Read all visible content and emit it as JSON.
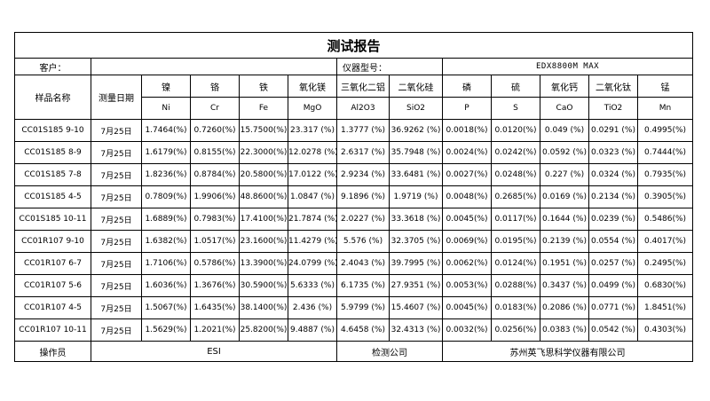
{
  "report": {
    "title": "测试报告",
    "customer_label": "客户：",
    "customer_value": "",
    "instrument_label": "仪器型号：",
    "instrument_value": "EDX8800M MAX",
    "sample_name_header": "样品名称",
    "date_header": "测量日期",
    "elements": [
      {
        "name": "镍",
        "symbol": "Ni"
      },
      {
        "name": "铬",
        "symbol": "Cr"
      },
      {
        "name": "铁",
        "symbol": "Fe"
      },
      {
        "name": "氧化镁",
        "symbol": "MgO"
      },
      {
        "name": "三氧化二铝",
        "symbol": "Al2O3"
      },
      {
        "name": "二氧化硅",
        "symbol": "SiO2"
      },
      {
        "name": "磷",
        "symbol": "P"
      },
      {
        "name": "硫",
        "symbol": "S"
      },
      {
        "name": "氧化钙",
        "symbol": "CaO"
      },
      {
        "name": "二氧化钛",
        "symbol": "TiO2"
      },
      {
        "name": "锰",
        "symbol": "Mn"
      }
    ],
    "rows": [
      {
        "sample": "CC01S185 9-10",
        "date": "7月25日",
        "values": [
          "1.7464(%)",
          "0.7260(%)",
          "15.7500(%)",
          "23.317 (%)",
          "1.3777 (%)",
          "36.9262 (%)",
          "0.0018(%)",
          "0.0120(%)",
          "0.049 (%)",
          "0.0291 (%)",
          "0.4995(%)"
        ]
      },
      {
        "sample": "CC01S185 8-9",
        "date": "7月25日",
        "values": [
          "1.6179(%)",
          "0.8155(%)",
          "22.3000(%)",
          "12.0278 (%)",
          "2.6317 (%)",
          "35.7948 (%)",
          "0.0024(%)",
          "0.0242(%)",
          "0.0592 (%)",
          "0.0323 (%)",
          "0.7444(%)"
        ]
      },
      {
        "sample": "CC01S185 7-8",
        "date": "7月25日",
        "values": [
          "1.8236(%)",
          "0.8784(%)",
          "20.5800(%)",
          "17.0122 (%)",
          "2.9234 (%)",
          "33.6481 (%)",
          "0.0027(%)",
          "0.0248(%)",
          "0.227 (%)",
          "0.0324 (%)",
          "0.7935(%)"
        ]
      },
      {
        "sample": "CC01S185 4-5",
        "date": "7月25日",
        "values": [
          "0.7809(%)",
          "1.9906(%)",
          "48.8600(%)",
          "1.0847 (%)",
          "9.1896 (%)",
          "1.9719 (%)",
          "0.0048(%)",
          "0.2685(%)",
          "0.0169 (%)",
          "0.2134 (%)",
          "0.3905(%)"
        ]
      },
      {
        "sample": "CC01S185 10-11",
        "date": "7月25日",
        "values": [
          "1.6889(%)",
          "0.7983(%)",
          "17.4100(%)",
          "21.7874 (%)",
          "2.0227 (%)",
          "33.3618 (%)",
          "0.0045(%)",
          "0.0117(%)",
          "0.1644 (%)",
          "0.0239 (%)",
          "0.5486(%)"
        ]
      },
      {
        "sample": "CC01R107 9-10",
        "date": "7月25日",
        "values": [
          "1.6382(%)",
          "1.0517(%)",
          "23.1600(%)",
          "11.4279 (%)",
          "5.576 (%)",
          "32.3705 (%)",
          "0.0069(%)",
          "0.0195(%)",
          "0.2139 (%)",
          "0.0554 (%)",
          "0.4017(%)"
        ]
      },
      {
        "sample": "CC01R107 6-7",
        "date": "7月25日",
        "values": [
          "1.7106(%)",
          "0.5786(%)",
          "13.3900(%)",
          "24.0799 (%)",
          "2.4043 (%)",
          "39.7995 (%)",
          "0.0062(%)",
          "0.0124(%)",
          "0.1951 (%)",
          "0.0257 (%)",
          "0.2495(%)"
        ]
      },
      {
        "sample": "CC01R107 5-6",
        "date": "7月25日",
        "values": [
          "1.6036(%)",
          "1.3676(%)",
          "30.5900(%)",
          "5.6333 (%)",
          "6.1735 (%)",
          "27.9351 (%)",
          "0.0053(%)",
          "0.0288(%)",
          "0.3437 (%)",
          "0.0499 (%)",
          "0.6830(%)"
        ]
      },
      {
        "sample": "CC01R107 4-5",
        "date": "7月25日",
        "values": [
          "1.5067(%)",
          "1.6435(%)",
          "38.1400(%)",
          "2.436 (%)",
          "5.9799 (%)",
          "15.4607 (%)",
          "0.0045(%)",
          "0.0183(%)",
          "0.2086 (%)",
          "0.0771 (%)",
          "1.8451(%)"
        ]
      },
      {
        "sample": "CC01R107 10-11",
        "date": "7月25日",
        "values": [
          "1.5629(%)",
          "1.2021(%)",
          "25.8200(%)",
          "9.4887 (%)",
          "4.6458 (%)",
          "32.4313 (%)",
          "0.0032(%)",
          "0.0256(%)",
          "0.0383 (%)",
          "0.0542 (%)",
          "0.4303(%)"
        ]
      }
    ],
    "footer": {
      "operator_label": "操作员",
      "operator_value": "ESI",
      "company_label": "检测公司",
      "company_value": "苏州英飞思科学仪器有限公司"
    }
  }
}
